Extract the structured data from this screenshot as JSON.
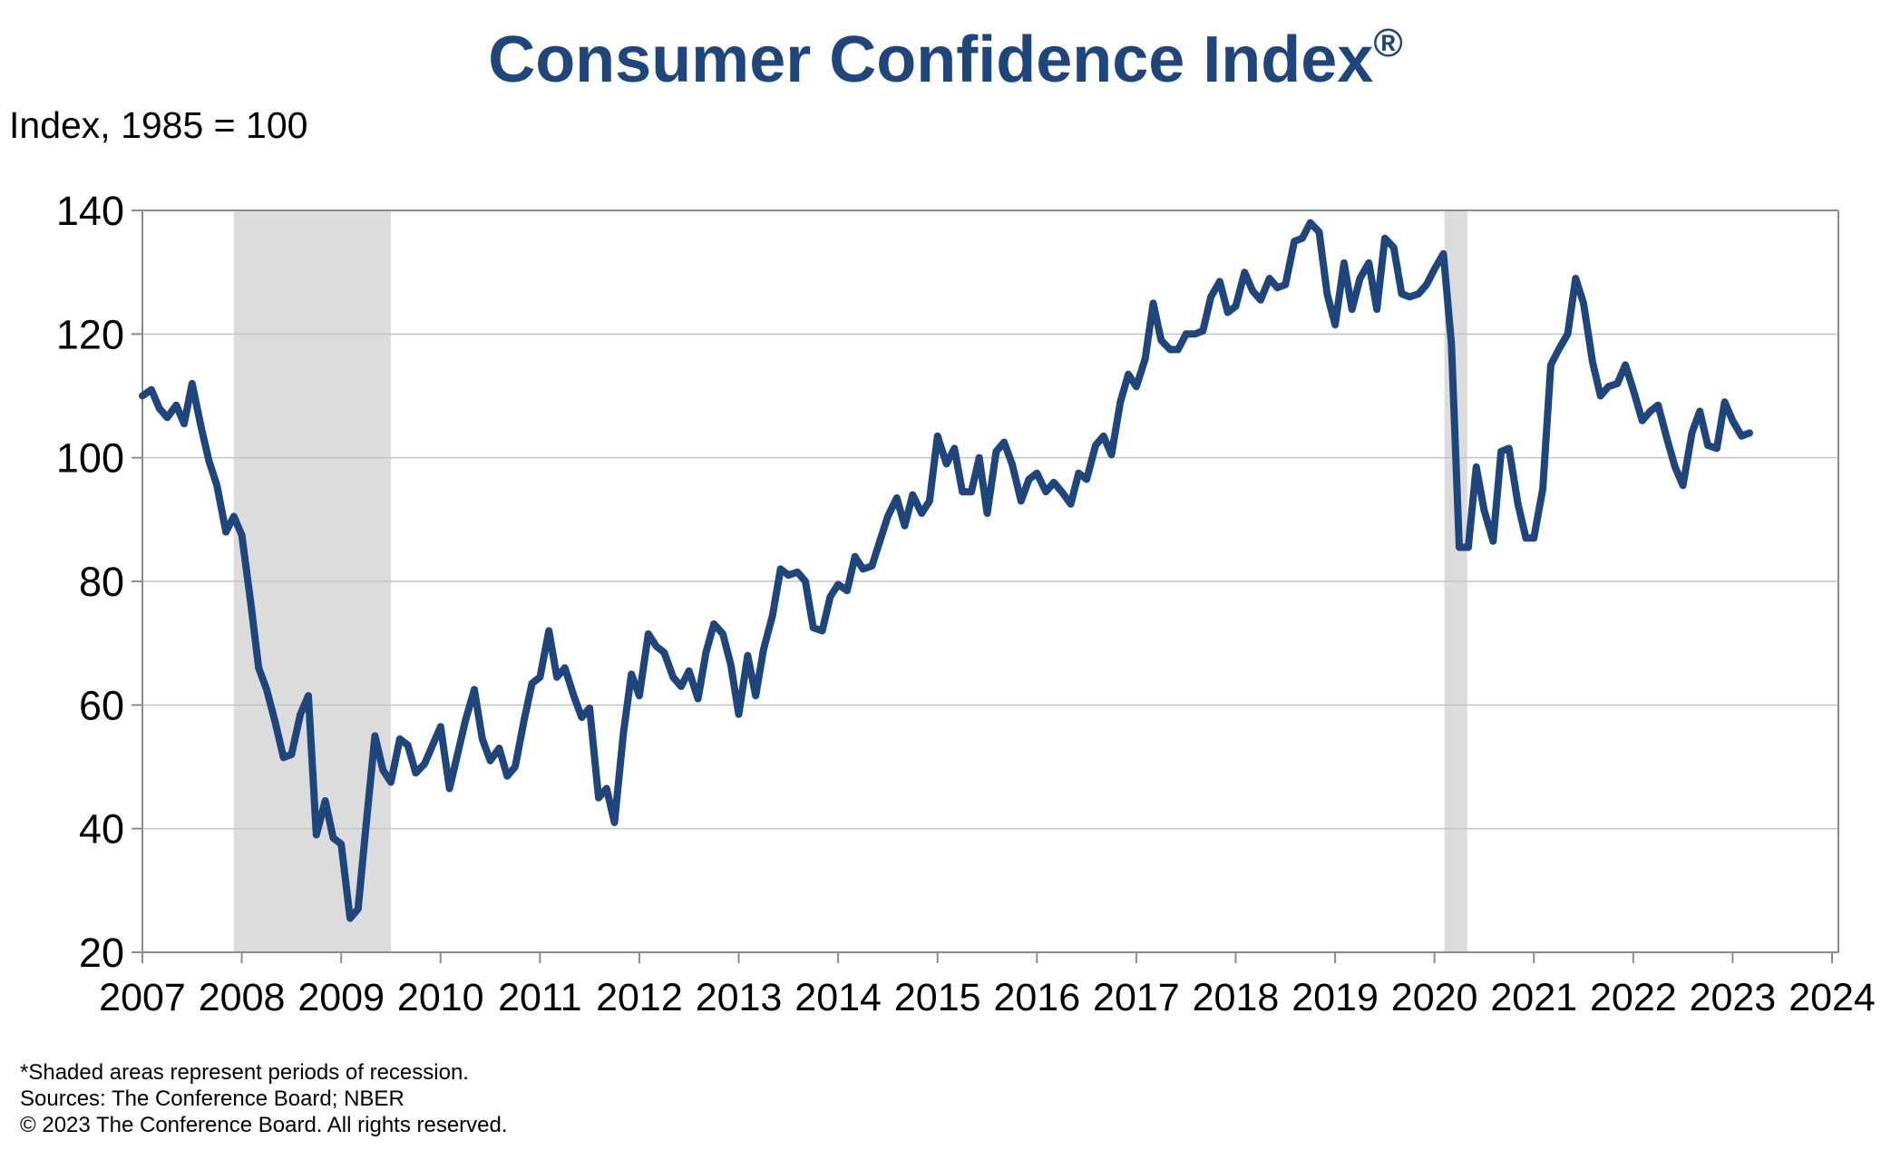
{
  "chart_data": {
    "type": "line",
    "title": "Consumer Confidence Index",
    "title_mark": "®",
    "ylabel": "Index, 1985 = 100",
    "xlabel": "",
    "ylim": [
      20,
      140
    ],
    "yticks": [
      20,
      40,
      60,
      80,
      100,
      120,
      140
    ],
    "xlim": [
      2007,
      2024
    ],
    "xticks": [
      "2007",
      "2008",
      "2009",
      "2010",
      "2011",
      "2012",
      "2013",
      "2014",
      "2015",
      "2016",
      "2017",
      "2018",
      "2019",
      "2020",
      "2021",
      "2022",
      "2023",
      "2024"
    ],
    "grid": true,
    "legend": "none",
    "line_color": "#1f467c",
    "recession_color": "#dcdcdc",
    "recessions": [
      {
        "start": 2007.92,
        "end": 2009.5
      },
      {
        "start": 2020.1,
        "end": 2020.33
      }
    ],
    "series": [
      {
        "x": [
          2007.0,
          2007.09,
          2007.17,
          2007.25,
          2007.34,
          2007.42,
          2007.5,
          2007.59,
          2007.67,
          2007.75,
          2007.84,
          2007.92,
          2008.0,
          2008.09,
          2008.17,
          2008.25,
          2008.34,
          2008.42,
          2008.5,
          2008.59,
          2008.67,
          2008.75,
          2008.84,
          2008.92,
          2009.0,
          2009.09,
          2009.17,
          2009.25,
          2009.34,
          2009.42,
          2009.5,
          2009.59,
          2009.67,
          2009.75,
          2009.84,
          2009.92,
          2010.0,
          2010.09,
          2010.17,
          2010.25,
          2010.34,
          2010.42,
          2010.5,
          2010.59,
          2010.67,
          2010.75,
          2010.84,
          2010.92,
          2011.0,
          2011.09,
          2011.17,
          2011.25,
          2011.34,
          2011.42,
          2011.5,
          2011.59,
          2011.67,
          2011.75,
          2011.84,
          2011.92,
          2012.0,
          2012.09,
          2012.17,
          2012.25,
          2012.34,
          2012.42,
          2012.5,
          2012.59,
          2012.67,
          2012.75,
          2012.84,
          2012.92,
          2013.0,
          2013.09,
          2013.17,
          2013.25,
          2013.34,
          2013.42,
          2013.5,
          2013.59,
          2013.67,
          2013.75,
          2013.84,
          2013.92,
          2014.0,
          2014.09,
          2014.17,
          2014.25,
          2014.34,
          2014.42,
          2014.5,
          2014.59,
          2014.67,
          2014.75,
          2014.84,
          2014.92,
          2015.0,
          2015.09,
          2015.17,
          2015.25,
          2015.34,
          2015.42,
          2015.5,
          2015.59,
          2015.67,
          2015.75,
          2015.84,
          2015.92,
          2016.0,
          2016.09,
          2016.17,
          2016.25,
          2016.34,
          2016.42,
          2016.5,
          2016.59,
          2016.67,
          2016.75,
          2016.84,
          2016.92,
          2017.0,
          2017.09,
          2017.17,
          2017.25,
          2017.34,
          2017.42,
          2017.5,
          2017.59,
          2017.67,
          2017.75,
          2017.84,
          2017.92,
          2018.0,
          2018.09,
          2018.17,
          2018.25,
          2018.34,
          2018.42,
          2018.5,
          2018.59,
          2018.67,
          2018.75,
          2018.84,
          2018.92,
          2019.0,
          2019.09,
          2019.17,
          2019.25,
          2019.34,
          2019.42,
          2019.5,
          2019.59,
          2019.67,
          2019.75,
          2019.84,
          2019.92,
          2020.0,
          2020.09,
          2020.17,
          2020.25,
          2020.34,
          2020.42,
          2020.5,
          2020.59,
          2020.67,
          2020.75,
          2020.84,
          2020.92,
          2021.0,
          2021.09,
          2021.17,
          2021.25,
          2021.34,
          2021.42,
          2021.5,
          2021.59,
          2021.67,
          2021.75,
          2021.84,
          2021.92,
          2022.0,
          2022.09,
          2022.17,
          2022.25,
          2022.34,
          2022.42,
          2022.5,
          2022.59,
          2022.67,
          2022.75,
          2022.84,
          2022.92,
          2023.0,
          2023.09,
          2023.17
        ],
        "values": [
          110,
          111,
          108,
          106.5,
          108.5,
          105.5,
          112,
          105,
          99.5,
          95.5,
          88,
          90.5,
          87.5,
          76.5,
          66,
          62.5,
          57,
          51.5,
          52,
          58.5,
          61.5,
          39,
          44.5,
          38.5,
          37.5,
          25.5,
          27,
          40.5,
          55,
          49.5,
          47.5,
          54.5,
          53.5,
          49,
          50.5,
          53.5,
          56.5,
          46.5,
          52,
          57.5,
          62.5,
          54.5,
          51,
          53,
          48.5,
          50,
          57.5,
          63.5,
          64.5,
          72,
          64.5,
          66,
          61.5,
          58,
          59.5,
          45,
          46.5,
          41,
          55.5,
          65,
          61.5,
          71.5,
          69.5,
          68.5,
          64.5,
          63,
          65.5,
          61,
          68.5,
          73.1,
          71.5,
          66.5,
          58.5,
          68,
          61.5,
          69,
          74.5,
          82,
          81,
          81.5,
          80,
          72.5,
          72,
          77.5,
          79.5,
          78.5,
          84,
          82,
          82.5,
          86.5,
          90.5,
          93.5,
          89,
          94,
          91,
          93,
          103.5,
          99,
          101.5,
          94.5,
          94.5,
          100,
          91,
          101,
          102.5,
          99,
          93,
          96.5,
          97.5,
          94.5,
          96,
          94.5,
          92.5,
          97.5,
          96.5,
          102,
          103.5,
          100.5,
          109,
          113.5,
          111.5,
          116,
          125,
          119,
          117.5,
          117.5,
          120,
          120,
          120.5,
          126,
          128.5,
          123.5,
          124.5,
          130,
          127,
          125.5,
          129,
          127.5,
          128,
          135,
          135.5,
          138,
          136.5,
          126.5,
          121.5,
          131.5,
          124,
          129,
          131.5,
          124,
          135.5,
          134,
          126.5,
          126,
          126.5,
          128,
          130.5,
          133,
          118.5,
          85.5,
          85.5,
          98.5,
          91.5,
          86.5,
          101,
          101.5,
          92.5,
          87,
          87,
          95,
          115,
          117.5,
          120,
          129,
          125,
          115.5,
          110,
          111.5,
          112,
          115,
          111,
          106,
          107.5,
          108.5,
          103,
          98.5,
          95.5,
          104,
          107.5,
          102,
          101.5,
          109,
          106,
          103.5,
          104
        ]
      }
    ]
  },
  "notes": {
    "line1": "*Shaded areas represent periods of recession.",
    "line2": "Sources: The Conference Board; NBER",
    "line3": "© 2023 The Conference Board. All rights reserved."
  }
}
